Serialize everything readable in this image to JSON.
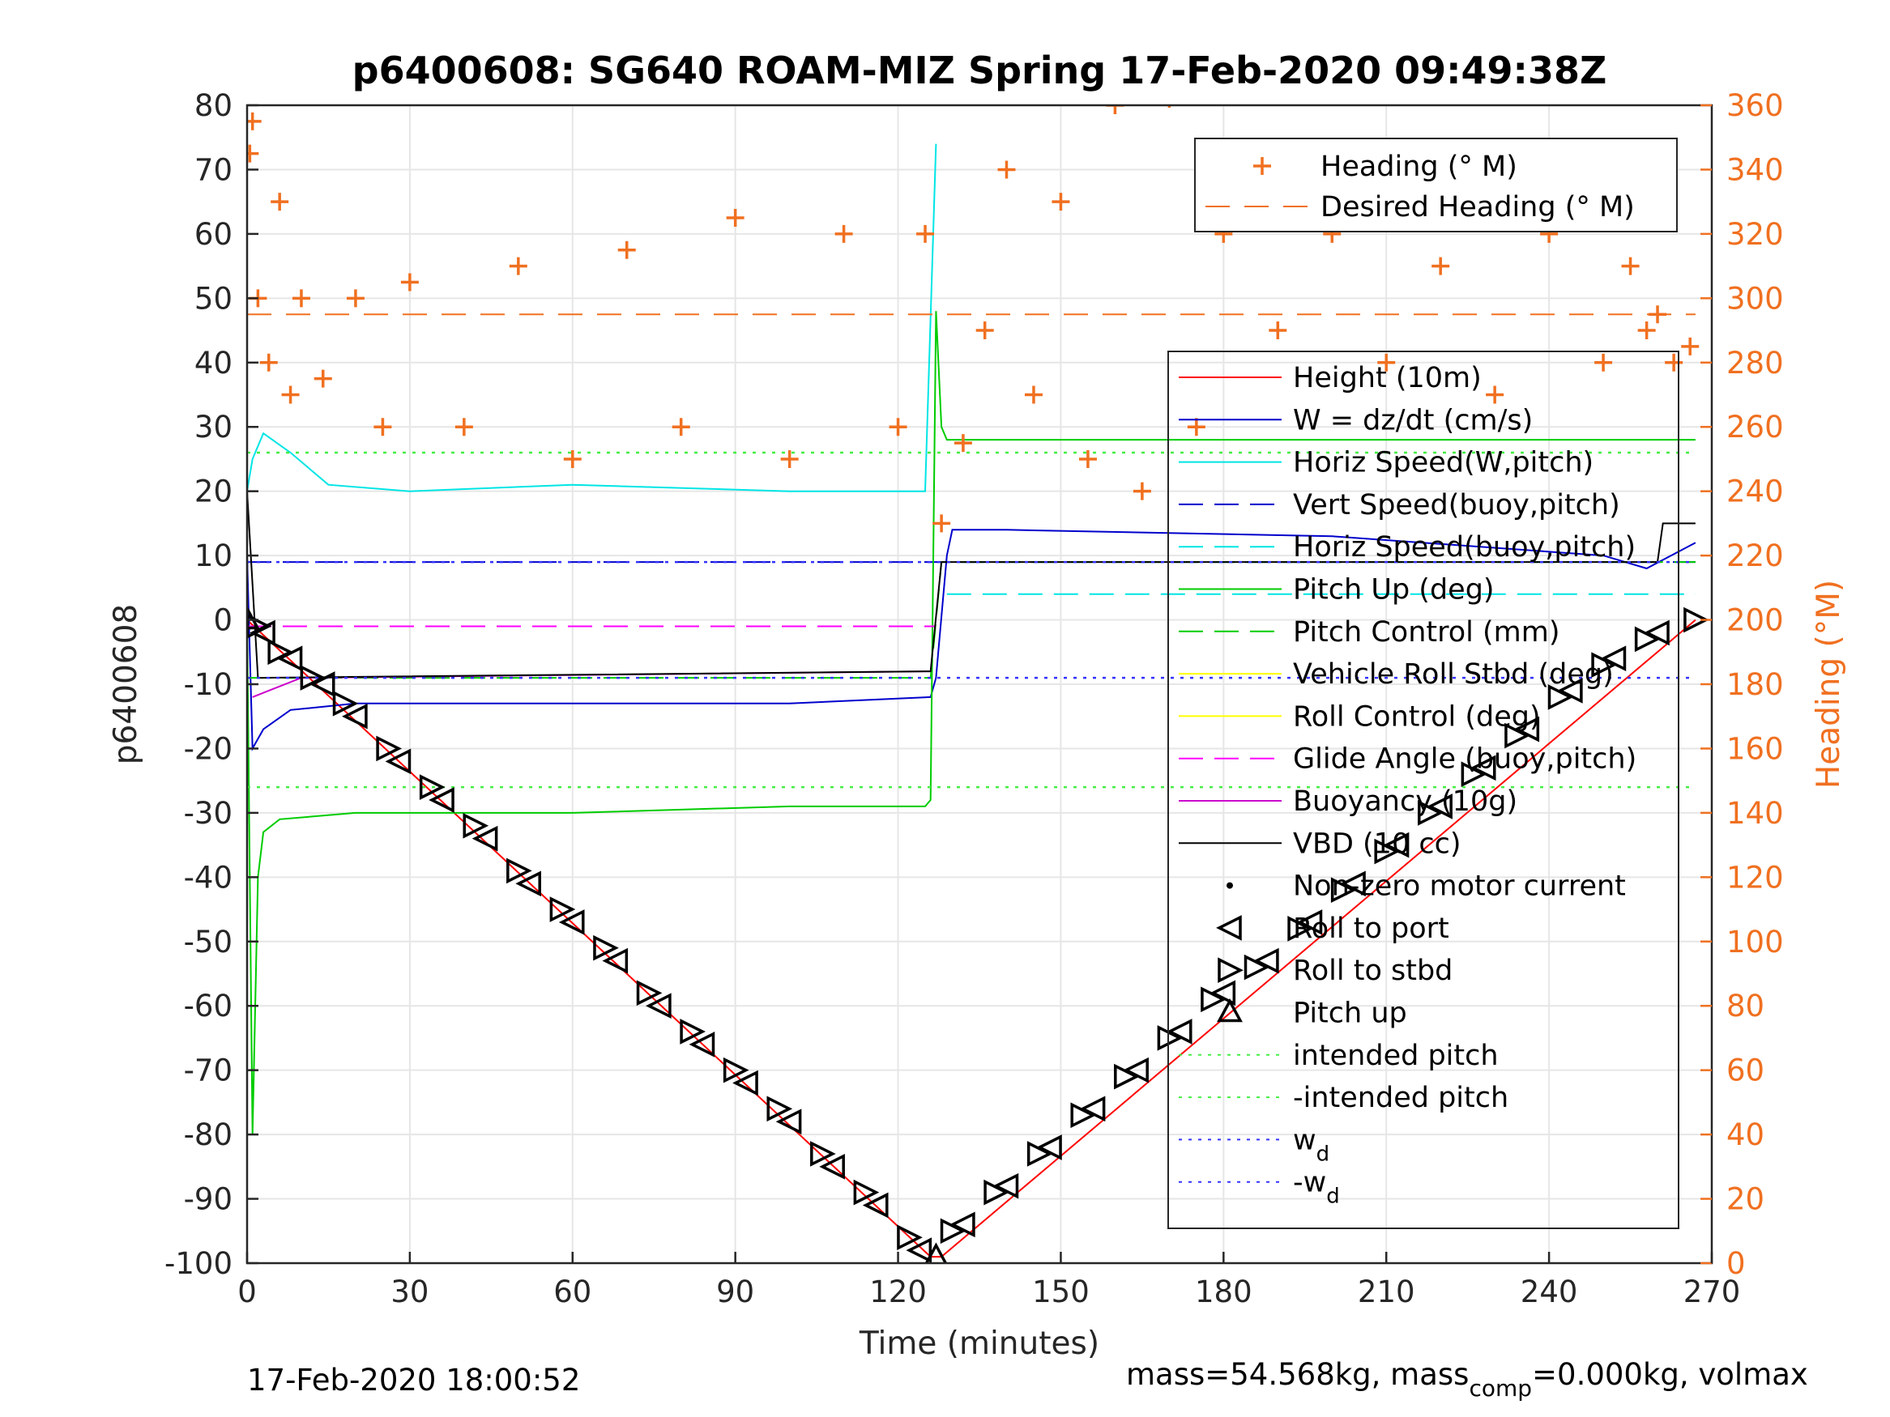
{
  "chart_data": {
    "type": "line",
    "title": "p6400608: SG640 ROAM-MIZ Spring 17-Feb-2020 09:49:38Z",
    "xlabel": "Time (minutes)",
    "ylabel": "p6400608",
    "ylabel_right": "Heading (°M)",
    "xlim": [
      0,
      270
    ],
    "ylim": [
      -100,
      80
    ],
    "ylim_right": [
      0,
      360
    ],
    "xticks": [
      0,
      30,
      60,
      90,
      120,
      150,
      180,
      210,
      240,
      270
    ],
    "yticks": [
      80,
      70,
      60,
      50,
      40,
      30,
      20,
      10,
      0,
      -10,
      -20,
      -30,
      -40,
      -50,
      -60,
      -70,
      -80,
      -90,
      -100
    ],
    "yticks_right": [
      360,
      340,
      320,
      300,
      280,
      260,
      240,
      220,
      200,
      180,
      160,
      140,
      120,
      100,
      80,
      60,
      40,
      20,
      0
    ],
    "grid": true,
    "footer_left": "17-Feb-2020 18:00:52",
    "footer_right": {
      "prefix": "mass=54.568kg, mass",
      "sub": "comp",
      "suffix": "=0.000kg, volmax"
    },
    "legend_heading": {
      "placement": "top-right",
      "entries": [
        {
          "label": "Heading (° M)",
          "color": "#f07020"
        },
        {
          "label": "Desired Heading (° M)",
          "color": "#f07020"
        }
      ]
    },
    "legend_main": {
      "placement": "right",
      "entries": [
        {
          "label": "Height (10m)",
          "color": "#ff0000"
        },
        {
          "label": "W = dz/dt (cm/s)",
          "color": "#0000cc"
        },
        {
          "label": "Horiz Speed(W,pitch)",
          "color": "#00e5e5"
        },
        {
          "label": "Vert Speed(buoy,pitch)",
          "color": "#0000cc"
        },
        {
          "label": "Horiz Speed(buoy,pitch)",
          "color": "#00e5e5"
        },
        {
          "label": "Pitch Up (deg)",
          "color": "#00cc00"
        },
        {
          "label": "Pitch Control (mm)",
          "color": "#00cc00"
        },
        {
          "label": "Vehicle Roll Stbd (deg)",
          "color": "#ffff00"
        },
        {
          "label": "Roll Control (deg)",
          "color": "#ffff00"
        },
        {
          "label": "Glide Angle (buoy,pitch)",
          "color": "#ff00ff"
        },
        {
          "label": "Buoyancy (10g)",
          "color": "#cc00cc"
        },
        {
          "label": "VBD (10 cc)",
          "color": "#000000"
        },
        {
          "label": "Non-zero motor current",
          "color": "#000000"
        },
        {
          "label": "Roll to port",
          "color": "#000000"
        },
        {
          "label": "Roll to stbd",
          "color": "#000000"
        },
        {
          "label": "Pitch up",
          "color": "#000000"
        },
        {
          "label": "intended pitch",
          "color": "#44ee44"
        },
        {
          "label": "-intended pitch",
          "color": "#44ee44"
        },
        {
          "label": "w",
          "sub": "d",
          "color": "#3333ff"
        },
        {
          "label": "-w",
          "sub": "d",
          "color": "#3333ff"
        }
      ]
    },
    "series": [
      {
        "name": "Height (10m)",
        "x": [
          0,
          126,
          128,
          267
        ],
        "y": [
          0,
          -99,
          -99,
          0
        ]
      },
      {
        "name": "W = dz/dt (cm/s)",
        "x": [
          0,
          1,
          3,
          8,
          20,
          60,
          100,
          126,
          127,
          129,
          130,
          140,
          200,
          250,
          258,
          267
        ],
        "y": [
          10,
          -20,
          -17,
          -14,
          -13,
          -13,
          -13,
          -12,
          -9,
          10,
          14,
          14,
          13,
          10,
          8,
          12
        ]
      },
      {
        "name": "Horiz Speed(W,pitch)",
        "x": [
          0,
          1,
          3,
          8,
          15,
          30,
          60,
          100,
          120,
          125,
          127
        ],
        "y": [
          20,
          25,
          29,
          26,
          21,
          20,
          21,
          20,
          20,
          20,
          74
        ]
      },
      {
        "name": "Vert Speed(buoy,pitch)",
        "x": [
          0,
          126,
          127,
          267
        ],
        "y": [
          9,
          9,
          9,
          9
        ]
      },
      {
        "name": "Horiz Speed(buoy,pitch)",
        "x": [
          129,
          267
        ],
        "y": [
          4,
          4
        ]
      },
      {
        "name": "Pitch Up (deg)",
        "x": [
          0,
          1,
          2,
          3,
          6,
          20,
          60,
          100,
          125,
          126,
          127,
          128,
          129,
          200,
          267
        ],
        "y": [
          0,
          -80,
          -40,
          -33,
          -31,
          -30,
          -30,
          -29,
          -29,
          -28,
          48,
          30,
          28,
          28,
          28
        ]
      },
      {
        "name": "Pitch Control (mm)",
        "x": [
          0,
          126,
          128,
          267
        ],
        "y": [
          -9,
          -9,
          9,
          9
        ]
      },
      {
        "name": "Glide Angle (buoy,pitch)",
        "x": [
          0,
          127
        ],
        "y": [
          -1,
          -1
        ]
      },
      {
        "name": "Buoyancy (10g)",
        "x": [
          1,
          4,
          10,
          126
        ],
        "y": [
          -12,
          -11,
          -9,
          -8
        ]
      },
      {
        "name": "VBD (10 cc)",
        "x": [
          0,
          2,
          126,
          128,
          260,
          261,
          267
        ],
        "y": [
          20,
          -9,
          -8,
          9,
          9,
          15,
          15
        ]
      },
      {
        "name": "intended pitch",
        "x": [
          0,
          267
        ],
        "y": [
          26,
          26
        ]
      },
      {
        "name": "-intended pitch",
        "x": [
          0,
          267
        ],
        "y": [
          -26,
          -26
        ]
      },
      {
        "name": "w_d",
        "x": [
          0,
          267
        ],
        "y": [
          9,
          9
        ]
      },
      {
        "name": "-w_d",
        "x": [
          0,
          267
        ],
        "y": [
          -9,
          -9
        ]
      },
      {
        "name": "Heading (° M)",
        "axis": "right",
        "x": [
          0.5,
          1,
          2,
          4,
          6,
          8,
          10,
          14,
          20,
          25,
          30,
          40,
          50,
          60,
          70,
          80,
          90,
          100,
          110,
          120,
          125,
          128,
          132,
          136,
          140,
          145,
          150,
          155,
          160,
          165,
          170,
          175,
          180,
          190,
          200,
          210,
          220,
          230,
          240,
          250,
          255,
          258,
          260,
          263,
          266
        ],
        "y": [
          345,
          355,
          300,
          280,
          330,
          270,
          300,
          275,
          300,
          260,
          305,
          260,
          310,
          250,
          315,
          260,
          325,
          250,
          320,
          260,
          320,
          230,
          255,
          290,
          340,
          270,
          330,
          250,
          360,
          240,
          362,
          260,
          320,
          290,
          320,
          280,
          310,
          270,
          320,
          280,
          310,
          290,
          295,
          280,
          285
        ]
      },
      {
        "name": "Desired Heading (° M)",
        "axis": "right",
        "x": [
          0,
          50,
          100,
          150,
          200,
          267
        ],
        "y": [
          295,
          295,
          295,
          295,
          295,
          295
        ]
      },
      {
        "name": "Roll to port",
        "x": [
          3,
          8,
          14,
          20,
          28,
          36,
          44,
          52,
          60,
          68,
          76,
          84,
          92,
          100,
          108,
          116,
          124,
          132,
          140,
          148,
          156,
          164,
          172,
          180,
          188,
          196,
          204,
          212,
          220,
          228,
          236,
          244,
          252,
          260
        ],
        "y": [
          -2,
          -6,
          -10,
          -15,
          -22,
          -28,
          -34,
          -41,
          -47,
          -53,
          -60,
          -66,
          -72,
          -78,
          -85,
          -91,
          -98,
          -94,
          -88,
          -82,
          -76,
          -70,
          -64,
          -58,
          -53,
          -47,
          -41,
          -35,
          -29,
          -23,
          -17,
          -11,
          -6,
          -2
        ]
      },
      {
        "name": "Roll to stbd",
        "x": [
          2,
          6,
          12,
          18,
          26,
          34,
          42,
          50,
          58,
          66,
          74,
          82,
          90,
          98,
          106,
          114,
          122,
          130,
          138,
          146,
          154,
          162,
          170,
          178,
          186,
          194,
          202,
          210,
          218,
          226,
          234,
          242,
          250,
          258,
          267
        ],
        "y": [
          -1,
          -5,
          -9,
          -13,
          -20,
          -26,
          -32,
          -39,
          -45,
          -51,
          -58,
          -64,
          -70,
          -76,
          -83,
          -89,
          -96,
          -95,
          -89,
          -83,
          -77,
          -71,
          -65,
          -59,
          -54,
          -48,
          -42,
          -36,
          -30,
          -24,
          -18,
          -12,
          -7,
          -3,
          0
        ]
      },
      {
        "name": "Pitch up",
        "x": [
          0,
          127
        ],
        "y": [
          0,
          -99
        ]
      }
    ]
  }
}
